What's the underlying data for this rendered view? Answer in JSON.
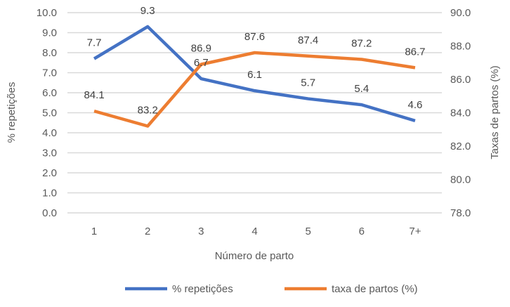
{
  "chart_data": {
    "type": "line",
    "categories": [
      "1",
      "2",
      "3",
      "4",
      "5",
      "6",
      "7+"
    ],
    "xlabel": "Número de parto",
    "ylabel": "% repetições",
    "y2label": "Taxas de partos (%)",
    "ylim": [
      0,
      10
    ],
    "yticks": [
      "0.0",
      "1.0",
      "2.0",
      "3.0",
      "4.0",
      "5.0",
      "6.0",
      "7.0",
      "8.0",
      "9.0",
      "10.0"
    ],
    "y2lim": [
      78,
      90
    ],
    "y2ticks": [
      "78.0",
      "80.0",
      "82.0",
      "84.0",
      "86.0",
      "88.0",
      "90.0"
    ],
    "grid": true,
    "legend_position": "bottom",
    "series": [
      {
        "name": "% repetições",
        "axis": "left",
        "color": "#4472C4",
        "values": [
          7.7,
          9.3,
          6.7,
          6.1,
          5.7,
          5.4,
          4.6
        ],
        "labels": [
          "7.7",
          "9.3",
          "6.7",
          "6.1",
          "5.7",
          "5.4",
          "4.6"
        ]
      },
      {
        "name": "taxa de partos (%)",
        "axis": "right",
        "color": "#ED7D31",
        "values": [
          84.1,
          83.2,
          86.9,
          87.6,
          87.4,
          87.2,
          86.7
        ],
        "labels": [
          "84.1",
          "83.2",
          "86.9",
          "87.6",
          "87.4",
          "87.2",
          "86.7"
        ]
      }
    ]
  }
}
